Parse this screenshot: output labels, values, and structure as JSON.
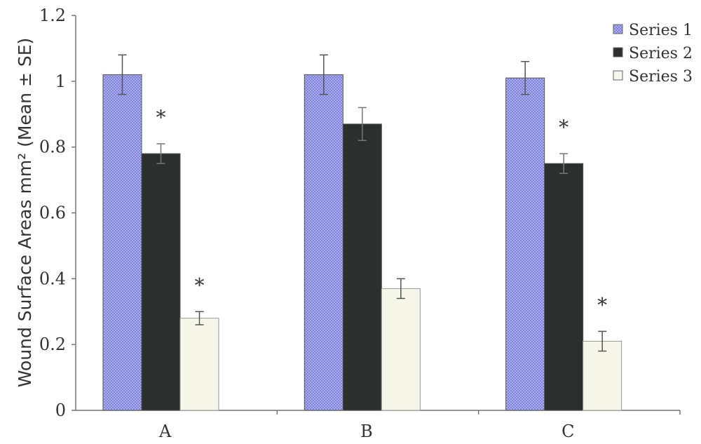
{
  "chart_data": {
    "type": "bar",
    "title": "",
    "xlabel": "",
    "ylabel": "Wound Surface Areas mm² (Mean ± SE)",
    "ylim": [
      0,
      1.2
    ],
    "yticks": [
      "0",
      "0.2",
      "0.4",
      "0.6",
      "0.8",
      "1",
      "1.2"
    ],
    "categories": [
      "A",
      "B",
      "C"
    ],
    "series": [
      {
        "name": "Series 1",
        "color": "#9fa3e8",
        "values": [
          1.02,
          1.02,
          1.01
        ],
        "errors": [
          0.06,
          0.06,
          0.05
        ],
        "significant": [
          false,
          false,
          false
        ]
      },
      {
        "name": "Series 2",
        "color": "#2b2f2e",
        "values": [
          0.78,
          0.87,
          0.75
        ],
        "errors": [
          0.03,
          0.05,
          0.03
        ],
        "significant": [
          true,
          false,
          true
        ]
      },
      {
        "name": "Series 3",
        "color": "#f6f7e8",
        "values": [
          0.28,
          0.37,
          0.21
        ],
        "errors": [
          0.02,
          0.03,
          0.03
        ],
        "significant": [
          true,
          false,
          true
        ]
      }
    ],
    "significance_marker": "*",
    "legend": "top-right",
    "grid": false
  }
}
